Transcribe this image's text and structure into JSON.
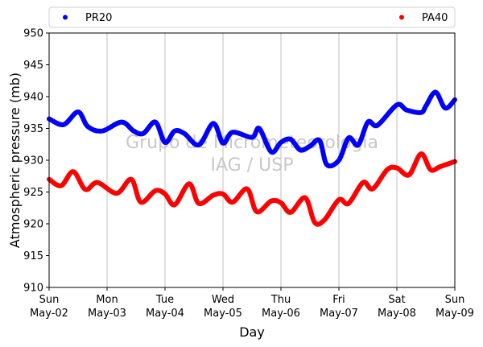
{
  "chart_data": {
    "type": "line",
    "title": "",
    "xlabel": "Day",
    "ylabel": "Atmospheric pressure (mb)",
    "ylim": [
      910,
      950
    ],
    "yticks": [
      910,
      915,
      920,
      925,
      930,
      935,
      940,
      945,
      950
    ],
    "xlim": [
      "2021-05-02",
      "2021-05-09"
    ],
    "xticks": [
      {
        "day": "Sun",
        "date": "May-02"
      },
      {
        "day": "Mon",
        "date": "May-03"
      },
      {
        "day": "Tue",
        "date": "May-04"
      },
      {
        "day": "Wed",
        "date": "May-05"
      },
      {
        "day": "Thu",
        "date": "May-06"
      },
      {
        "day": "Fri",
        "date": "May-07"
      },
      {
        "day": "Sat",
        "date": "May-08"
      },
      {
        "day": "Sun",
        "date": "May-09"
      }
    ],
    "grid": "vertical",
    "legend_position": "top, outside plot",
    "watermark": [
      "Grupo de Micrometeorologia",
      "IAG / USP"
    ],
    "series": [
      {
        "name": "PR20",
        "color": "#0000ff",
        "x": [
          "05-02 00:00",
          "05-02 06:00",
          "05-02 12:00",
          "05-02 16:00",
          "05-02 22:00",
          "05-03 06:00",
          "05-03 11:00",
          "05-03 15:00",
          "05-03 20:00",
          "05-04 00:00",
          "05-04 04:00",
          "05-04 08:00",
          "05-04 14:00",
          "05-04 20:00",
          "05-05 00:00",
          "05-05 04:00",
          "05-05 12:00",
          "05-05 15:00",
          "05-05 20:00",
          "05-06 00:00",
          "05-06 04:00",
          "05-06 08:00",
          "05-06 12:00",
          "05-06 16:00",
          "05-06 19:00",
          "05-07 00:00",
          "05-07 04:00",
          "05-07 08:00",
          "05-07 12:00",
          "05-07 16:00",
          "05-08 00:00",
          "05-08 04:00",
          "05-08 10:00",
          "05-08 12:00",
          "05-08 16:00",
          "05-08 20:00",
          "05-09 00:00"
        ],
        "y": [
          936.5,
          935.6,
          937.6,
          935.3,
          934.6,
          936.0,
          934.6,
          934.2,
          936.0,
          932.8,
          934.6,
          934.2,
          932.4,
          935.8,
          932.7,
          934.4,
          933.6,
          935.0,
          931.3,
          932.8,
          933.3,
          931.6,
          932.2,
          933.1,
          929.3,
          930.0,
          933.5,
          932.4,
          936.0,
          935.5,
          938.7,
          937.9,
          937.5,
          938.5,
          940.7,
          938.2,
          939.5
        ]
      },
      {
        "name": "PA40",
        "color": "#ff0000",
        "x": [
          "05-02 00:00",
          "05-02 05:00",
          "05-02 10:00",
          "05-02 15:00",
          "05-02 20:00",
          "05-03 04:00",
          "05-03 10:00",
          "05-03 14:00",
          "05-03 20:00",
          "05-04 00:00",
          "05-04 04:00",
          "05-04 10:00",
          "05-04 14:00",
          "05-04 20:00",
          "05-05 00:00",
          "05-05 04:00",
          "05-05 10:00",
          "05-05 14:00",
          "05-05 20:00",
          "05-06 00:00",
          "05-06 04:00",
          "05-06 10:00",
          "05-06 14:00",
          "05-06 18:00",
          "05-07 00:00",
          "05-07 04:00",
          "05-07 10:00",
          "05-07 14:00",
          "05-07 20:00",
          "05-08 00:00",
          "05-08 05:00",
          "05-08 10:00",
          "05-08 14:00",
          "05-08 18:00",
          "05-09 00:00"
        ],
        "y": [
          927.0,
          926.0,
          928.2,
          925.4,
          926.5,
          924.8,
          927.0,
          923.4,
          925.2,
          924.7,
          923.0,
          926.3,
          923.2,
          924.5,
          924.7,
          923.4,
          925.5,
          921.9,
          923.6,
          923.3,
          921.8,
          924.1,
          920.2,
          920.6,
          923.8,
          923.2,
          926.5,
          925.5,
          928.5,
          928.8,
          927.7,
          931.0,
          928.5,
          929.0,
          929.8
        ]
      }
    ]
  }
}
